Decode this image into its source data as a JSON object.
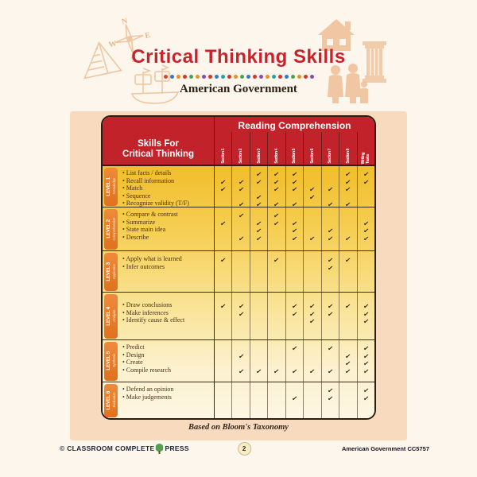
{
  "page": {
    "title": "Critical Thinking Skills",
    "subtitle": "American Government",
    "dots_colors": [
      "#d94436",
      "#3a79bd",
      "#e8912d",
      "#cf3a30",
      "#47a457",
      "#e8912d",
      "#8a4fa3",
      "#cf3a30",
      "#3a79bd",
      "#2ba3a0",
      "#cf3a30",
      "#e8912d",
      "#47a457",
      "#3a79bd",
      "#cf3a30",
      "#8a4fa3",
      "#e8912d",
      "#2ba3a0",
      "#cf3a30",
      "#3a79bd",
      "#47a457",
      "#e8912d",
      "#cf3a30",
      "#8a4fa3"
    ],
    "decorations": [
      "compass",
      "pyramid",
      "ship",
      "house",
      "roman-column",
      "family"
    ]
  },
  "table": {
    "header": {
      "skills_line1": "Skills For",
      "skills_line2": "Critical Thinking",
      "group_title": "Reading Comprehension",
      "columns": [
        "Section 1",
        "Section 2",
        "Section 3",
        "Section 4",
        "Section 5",
        "Section 6",
        "Section 7",
        "Section 8",
        "Writing Tasks"
      ]
    },
    "levels": [
      {
        "label": "LEVEL 1",
        "name": "Knowledge",
        "skills": [
          {
            "text": "List facts / details",
            "checks": [
              0,
              0,
              1,
              1,
              1,
              0,
              0,
              1,
              1
            ]
          },
          {
            "text": "Recall information",
            "checks": [
              1,
              1,
              1,
              1,
              1,
              0,
              0,
              1,
              1
            ]
          },
          {
            "text": "Match",
            "checks": [
              1,
              1,
              0,
              1,
              1,
              1,
              1,
              1,
              0
            ]
          },
          {
            "text": "Sequence",
            "checks": [
              0,
              0,
              1,
              0,
              0,
              1,
              0,
              0,
              0
            ]
          },
          {
            "text": "Recognize validity (T/F)",
            "checks": [
              0,
              1,
              1,
              1,
              1,
              0,
              1,
              1,
              0
            ]
          }
        ]
      },
      {
        "label": "LEVEL 2",
        "name": "Comprehension",
        "skills": [
          {
            "text": "Compare & contrast",
            "checks": [
              0,
              1,
              0,
              1,
              0,
              0,
              0,
              0,
              0
            ]
          },
          {
            "text": "Summarize",
            "checks": [
              1,
              0,
              1,
              1,
              1,
              0,
              0,
              0,
              1
            ]
          },
          {
            "text": "State main idea",
            "checks": [
              0,
              0,
              1,
              0,
              1,
              0,
              1,
              0,
              1
            ]
          },
          {
            "text": "Describe",
            "checks": [
              0,
              1,
              1,
              0,
              1,
              1,
              1,
              1,
              1
            ]
          }
        ]
      },
      {
        "label": "LEVEL 3",
        "name": "Application",
        "skills": [
          {
            "text": "Apply what is learned",
            "checks": [
              1,
              0,
              0,
              1,
              0,
              0,
              1,
              1,
              0
            ]
          },
          {
            "text": "Infer outcomes",
            "checks": [
              0,
              0,
              0,
              0,
              0,
              0,
              1,
              0,
              0
            ]
          }
        ]
      },
      {
        "label": "LEVEL 4",
        "name": "Analysis",
        "skills": [
          {
            "text": "Draw conclusions",
            "checks": [
              1,
              1,
              0,
              0,
              1,
              1,
              1,
              1,
              1
            ]
          },
          {
            "text": "Make inferences",
            "checks": [
              0,
              1,
              0,
              0,
              1,
              1,
              1,
              0,
              1
            ]
          },
          {
            "text": "Identify cause & effect",
            "checks": [
              0,
              0,
              0,
              0,
              0,
              1,
              0,
              0,
              1
            ]
          }
        ]
      },
      {
        "label": "LEVEL 5",
        "name": "Synthesis",
        "skills": [
          {
            "text": "Predict",
            "checks": [
              0,
              0,
              0,
              0,
              1,
              0,
              1,
              0,
              1
            ]
          },
          {
            "text": "Design",
            "checks": [
              0,
              1,
              0,
              0,
              0,
              0,
              0,
              1,
              1
            ]
          },
          {
            "text": "Create",
            "checks": [
              0,
              0,
              0,
              0,
              0,
              0,
              0,
              1,
              1
            ]
          },
          {
            "text": "Compile research",
            "checks": [
              0,
              1,
              1,
              1,
              1,
              1,
              1,
              1,
              1
            ]
          }
        ]
      },
      {
        "label": "LEVEL 6",
        "name": "Evaluation",
        "skills": [
          {
            "text": "Defend an opinion",
            "checks": [
              0,
              0,
              0,
              0,
              0,
              0,
              1,
              0,
              1
            ]
          },
          {
            "text": "Make judgements",
            "checks": [
              0,
              0,
              0,
              0,
              1,
              0,
              1,
              0,
              1
            ]
          }
        ]
      }
    ],
    "footnote": "Based on Bloom's Taxonomy"
  },
  "footer": {
    "copyright_left": "© CLASSROOM COMPLETE",
    "copyright_right": "PRESS",
    "page_number": "2",
    "right_text": "American Government  CC5757"
  }
}
